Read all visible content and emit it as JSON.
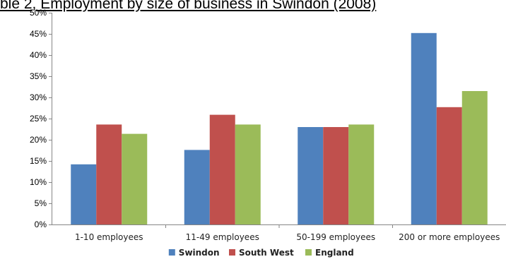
{
  "chart_data": {
    "type": "bar",
    "title": "ble 2, Employment by size of business in Swindon (2008)",
    "categories": [
      "1-10 employees",
      "11-49 employees",
      "50-199 employees",
      "200 or more employees"
    ],
    "series": [
      {
        "name": "Swindon",
        "color": "#4F81BD",
        "values": [
          14.2,
          17.6,
          23.0,
          45.2
        ]
      },
      {
        "name": "South West",
        "color": "#C0504D",
        "values": [
          23.6,
          25.9,
          23.0,
          27.7
        ]
      },
      {
        "name": "England",
        "color": "#9BBB59",
        "values": [
          21.4,
          23.6,
          23.6,
          31.5
        ]
      }
    ],
    "ylim": [
      0,
      50
    ],
    "yticks": [
      "0%",
      "5%",
      "10%",
      "15%",
      "20%",
      "25%",
      "30%",
      "35%",
      "40%",
      "45%",
      "50%"
    ],
    "xlabel": "",
    "ylabel": "",
    "grid": false,
    "legend": "bottom"
  }
}
